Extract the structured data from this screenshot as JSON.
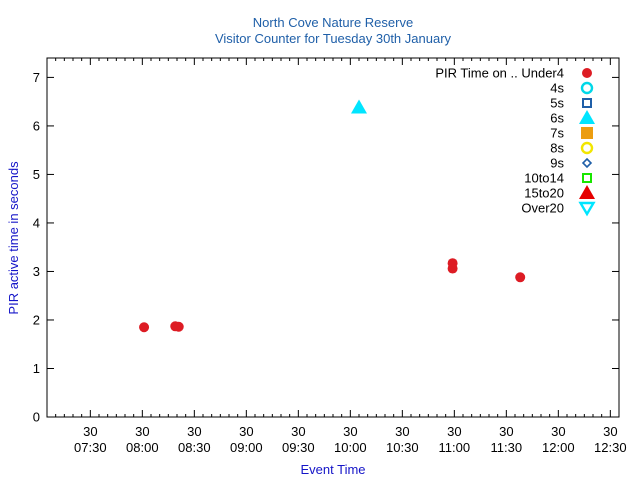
{
  "chart_data": {
    "type": "scatter",
    "title": "North Cove Nature Reserve",
    "subtitle": "Visitor Counter for Tuesday 30th January",
    "xlabel": "Event Time",
    "ylabel": "PIR active time in seconds",
    "legend_title": "PIR Time on ..",
    "legend_position": "top-right",
    "grid": false,
    "xlim": [
      "07:05",
      "12:35"
    ],
    "ylim": [
      0,
      7.4
    ],
    "x_ticks": [
      {
        "day": "30",
        "time": "07:30"
      },
      {
        "day": "30",
        "time": "08:00"
      },
      {
        "day": "30",
        "time": "08:30"
      },
      {
        "day": "30",
        "time": "09:00"
      },
      {
        "day": "30",
        "time": "09:30"
      },
      {
        "day": "30",
        "time": "10:00"
      },
      {
        "day": "30",
        "time": "10:30"
      },
      {
        "day": "30",
        "time": "11:00"
      },
      {
        "day": "30",
        "time": "11:30"
      },
      {
        "day": "30",
        "time": "12:00"
      },
      {
        "day": "30",
        "time": "12:30"
      }
    ],
    "y_ticks": [
      "0",
      "1",
      "2",
      "3",
      "4",
      "5",
      "6",
      "7"
    ],
    "series": [
      {
        "name": "Under4",
        "color": "#dd1c24",
        "marker": "circle-filled",
        "points": [
          {
            "x": "08:01",
            "y": 1.85
          },
          {
            "x": "08:19",
            "y": 1.87
          },
          {
            "x": "08:21",
            "y": 1.86
          },
          {
            "x": "10:59",
            "y": 3.17
          },
          {
            "x": "10:59",
            "y": 3.06
          },
          {
            "x": "11:38",
            "y": 2.88
          }
        ]
      },
      {
        "name": "4s",
        "color": "#00d8e8",
        "marker": "circle-open",
        "points": []
      },
      {
        "name": "5s",
        "color": "#1f5fa8",
        "marker": "square-open",
        "points": []
      },
      {
        "name": "6s",
        "color": "#00e5ff",
        "marker": "triangle-filled",
        "points": [
          {
            "x": "10:05",
            "y": 6.38
          }
        ]
      },
      {
        "name": "7s",
        "color": "#ec9d10",
        "marker": "square-filled",
        "points": []
      },
      {
        "name": "8s",
        "color": "#f2e600",
        "marker": "circle-open",
        "points": []
      },
      {
        "name": "9s",
        "color": "#1f5fa8",
        "marker": "diamond-open",
        "points": []
      },
      {
        "name": "10to14",
        "color": "#19e600",
        "marker": "square-open",
        "points": []
      },
      {
        "name": "15to20",
        "color": "#e60000",
        "marker": "triangle-filled",
        "points": []
      },
      {
        "name": "Over20",
        "color": "#00e5ff",
        "marker": "triangle-down-open",
        "points": []
      }
    ]
  }
}
